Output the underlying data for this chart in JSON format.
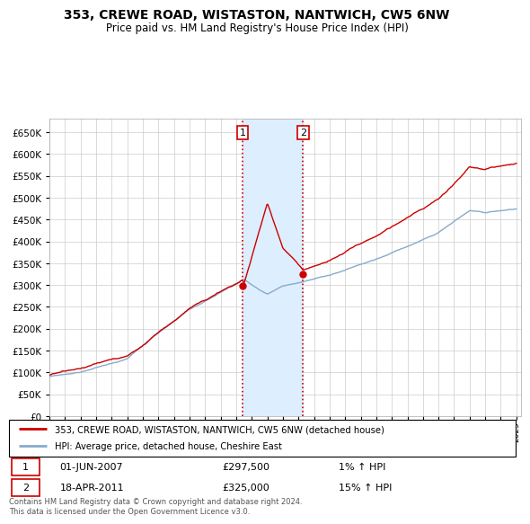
{
  "title": "353, CREWE ROAD, WISTASTON, NANTWICH, CW5 6NW",
  "subtitle": "Price paid vs. HM Land Registry's House Price Index (HPI)",
  "legend_line1": "353, CREWE ROAD, WISTASTON, NANTWICH, CW5 6NW (detached house)",
  "legend_line2": "HPI: Average price, detached house, Cheshire East",
  "annotation1_date": "01-JUN-2007",
  "annotation1_price": "£297,500",
  "annotation1_hpi": "1% ↑ HPI",
  "annotation2_date": "18-APR-2011",
  "annotation2_price": "£325,000",
  "annotation2_hpi": "15% ↑ HPI",
  "footer": "Contains HM Land Registry data © Crown copyright and database right 2024.\nThis data is licensed under the Open Government Licence v3.0.",
  "ylim": [
    0,
    680000
  ],
  "yticks": [
    0,
    50000,
    100000,
    150000,
    200000,
    250000,
    300000,
    350000,
    400000,
    450000,
    500000,
    550000,
    600000,
    650000
  ],
  "sale1_year": 2007.42,
  "sale1_price": 297500,
  "sale2_year": 2011.29,
  "sale2_price": 325000,
  "red_line_color": "#cc0000",
  "blue_line_color": "#88aacc",
  "shade_color": "#ddeeff",
  "grid_color": "#cccccc",
  "annotation_box_color": "#cc0000",
  "title_fontsize": 10,
  "subtitle_fontsize": 8.5
}
